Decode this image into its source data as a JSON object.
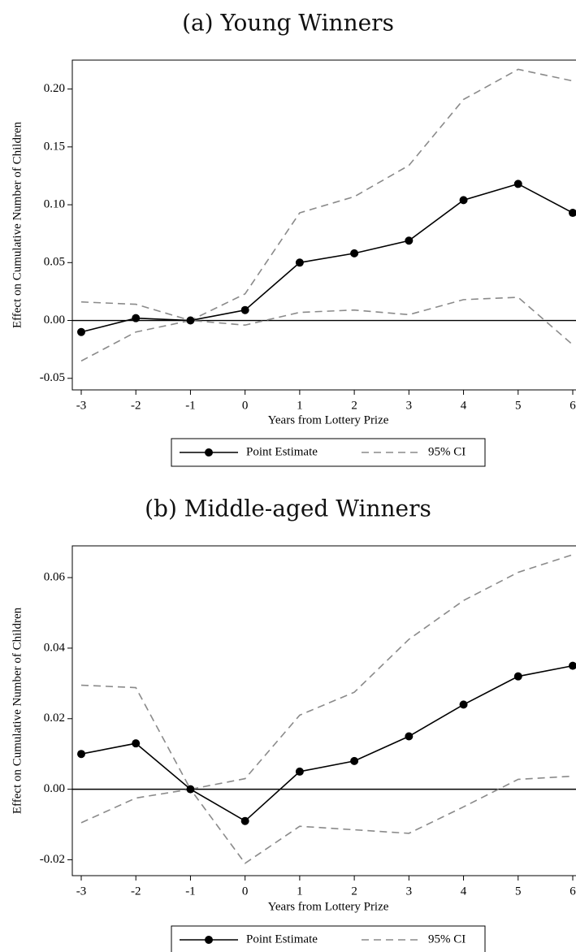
{
  "chart_data": [
    {
      "type": "line",
      "title": "(a) Young Winners",
      "xlabel": "Years from Lottery Prize",
      "ylabel": "Effect on Cumulative Number of Children",
      "x": [
        -3,
        -2,
        -1,
        0,
        1,
        2,
        3,
        4,
        5,
        6
      ],
      "x_tick_labels": [
        "-3",
        "-2",
        "-1",
        "0",
        "1",
        "2",
        "3",
        "4",
        "5",
        "6"
      ],
      "y_ticks": [
        -0.05,
        0.0,
        0.05,
        0.1,
        0.15,
        0.2
      ],
      "y_tick_labels": [
        "-0.05",
        "0.00",
        "0.05",
        "0.10",
        "0.15",
        "0.20"
      ],
      "xlim": [
        -3.2,
        6
      ],
      "ylim": [
        -0.06,
        0.225
      ],
      "series": [
        {
          "name": "Point Estimate",
          "values": [
            -0.01,
            0.002,
            0.0,
            0.009,
            0.05,
            0.058,
            0.069,
            0.104,
            0.118,
            0.093
          ]
        },
        {
          "name": "95% CI",
          "role": "upper",
          "values": [
            0.016,
            0.014,
            0.0,
            0.023,
            0.093,
            0.107,
            0.134,
            0.191,
            0.217,
            0.207
          ]
        },
        {
          "name": "95% CI",
          "role": "lower",
          "values": [
            -0.035,
            -0.01,
            0.0,
            -0.004,
            0.007,
            0.009,
            0.005,
            0.018,
            0.02,
            -0.021
          ]
        }
      ],
      "legend": {
        "position": "bottom",
        "items": [
          {
            "label": "Point Estimate",
            "style": "solid-marker"
          },
          {
            "label": "95% CI",
            "style": "dashed"
          }
        ]
      },
      "reference_line_y": 0
    },
    {
      "type": "line",
      "title": "(b) Middle-aged Winners",
      "xlabel": "Years from Lottery Prize",
      "ylabel": "Effect on Cumulative Number of Children",
      "x": [
        -3,
        -2,
        -1,
        0,
        1,
        2,
        3,
        4,
        5,
        6
      ],
      "x_tick_labels": [
        "-3",
        "-2",
        "-1",
        "0",
        "1",
        "2",
        "3",
        "4",
        "5",
        "6"
      ],
      "y_ticks": [
        -0.02,
        0.0,
        0.02,
        0.04,
        0.06
      ],
      "y_tick_labels": [
        "-0.02",
        "0.00",
        "0.02",
        "0.04",
        "0.06"
      ],
      "xlim": [
        -3.2,
        6
      ],
      "ylim": [
        -0.0245,
        0.069
      ],
      "series": [
        {
          "name": "Point Estimate",
          "values": [
            0.01,
            0.013,
            0.0,
            -0.009,
            0.005,
            0.008,
            0.015,
            0.024,
            0.032,
            0.035
          ]
        },
        {
          "name": "95% CI",
          "role": "upper",
          "values": [
            0.0295,
            0.0288,
            0.0,
            0.003,
            0.021,
            0.0275,
            0.0425,
            0.0535,
            0.0615,
            0.0665
          ]
        },
        {
          "name": "95% CI",
          "role": "lower",
          "values": [
            -0.0095,
            -0.0025,
            0.0,
            -0.021,
            -0.0105,
            -0.0115,
            -0.0125,
            -0.005,
            0.0028,
            0.0037
          ]
        }
      ],
      "legend": {
        "position": "bottom",
        "items": [
          {
            "label": "Point Estimate",
            "style": "solid-marker"
          },
          {
            "label": "95% CI",
            "style": "dashed"
          }
        ]
      },
      "reference_line_y": 0
    }
  ]
}
